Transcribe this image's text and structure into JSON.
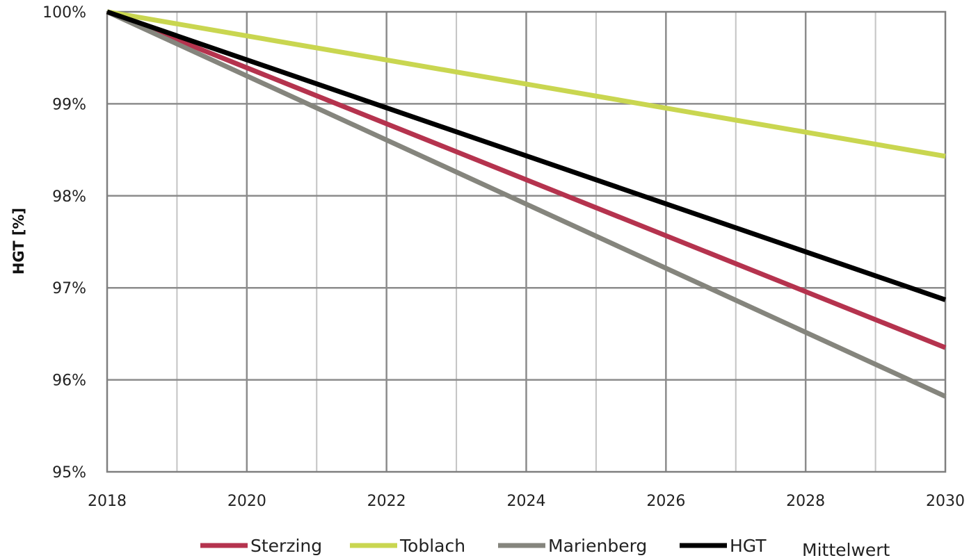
{
  "chart_data": {
    "type": "line",
    "title": "",
    "xlabel": "",
    "ylabel": "HGT [%]",
    "x": [
      2018,
      2030
    ],
    "xlim": [
      2018,
      2030
    ],
    "ylim": [
      95,
      100
    ],
    "x_ticks": [
      "2018",
      "2020",
      "2022",
      "2024",
      "2026",
      "2028",
      "2030"
    ],
    "y_ticks": [
      "95%",
      "96%",
      "97%",
      "98%",
      "99%",
      "100%"
    ],
    "grid": true,
    "legend_position": "bottom",
    "series": [
      {
        "name": "Sterzing",
        "values": [
          100,
          96.35
        ],
        "color": "#b5334e"
      },
      {
        "name": "Toblach",
        "values": [
          100,
          98.43
        ],
        "color": "#c9d650"
      },
      {
        "name": "Marienberg",
        "values": [
          100,
          95.82
        ],
        "color": "#85857d"
      },
      {
        "name": "HGT",
        "values": [
          100,
          96.87
        ],
        "color": "#000000"
      }
    ],
    "legend_extra_text": "Mittelwert"
  }
}
